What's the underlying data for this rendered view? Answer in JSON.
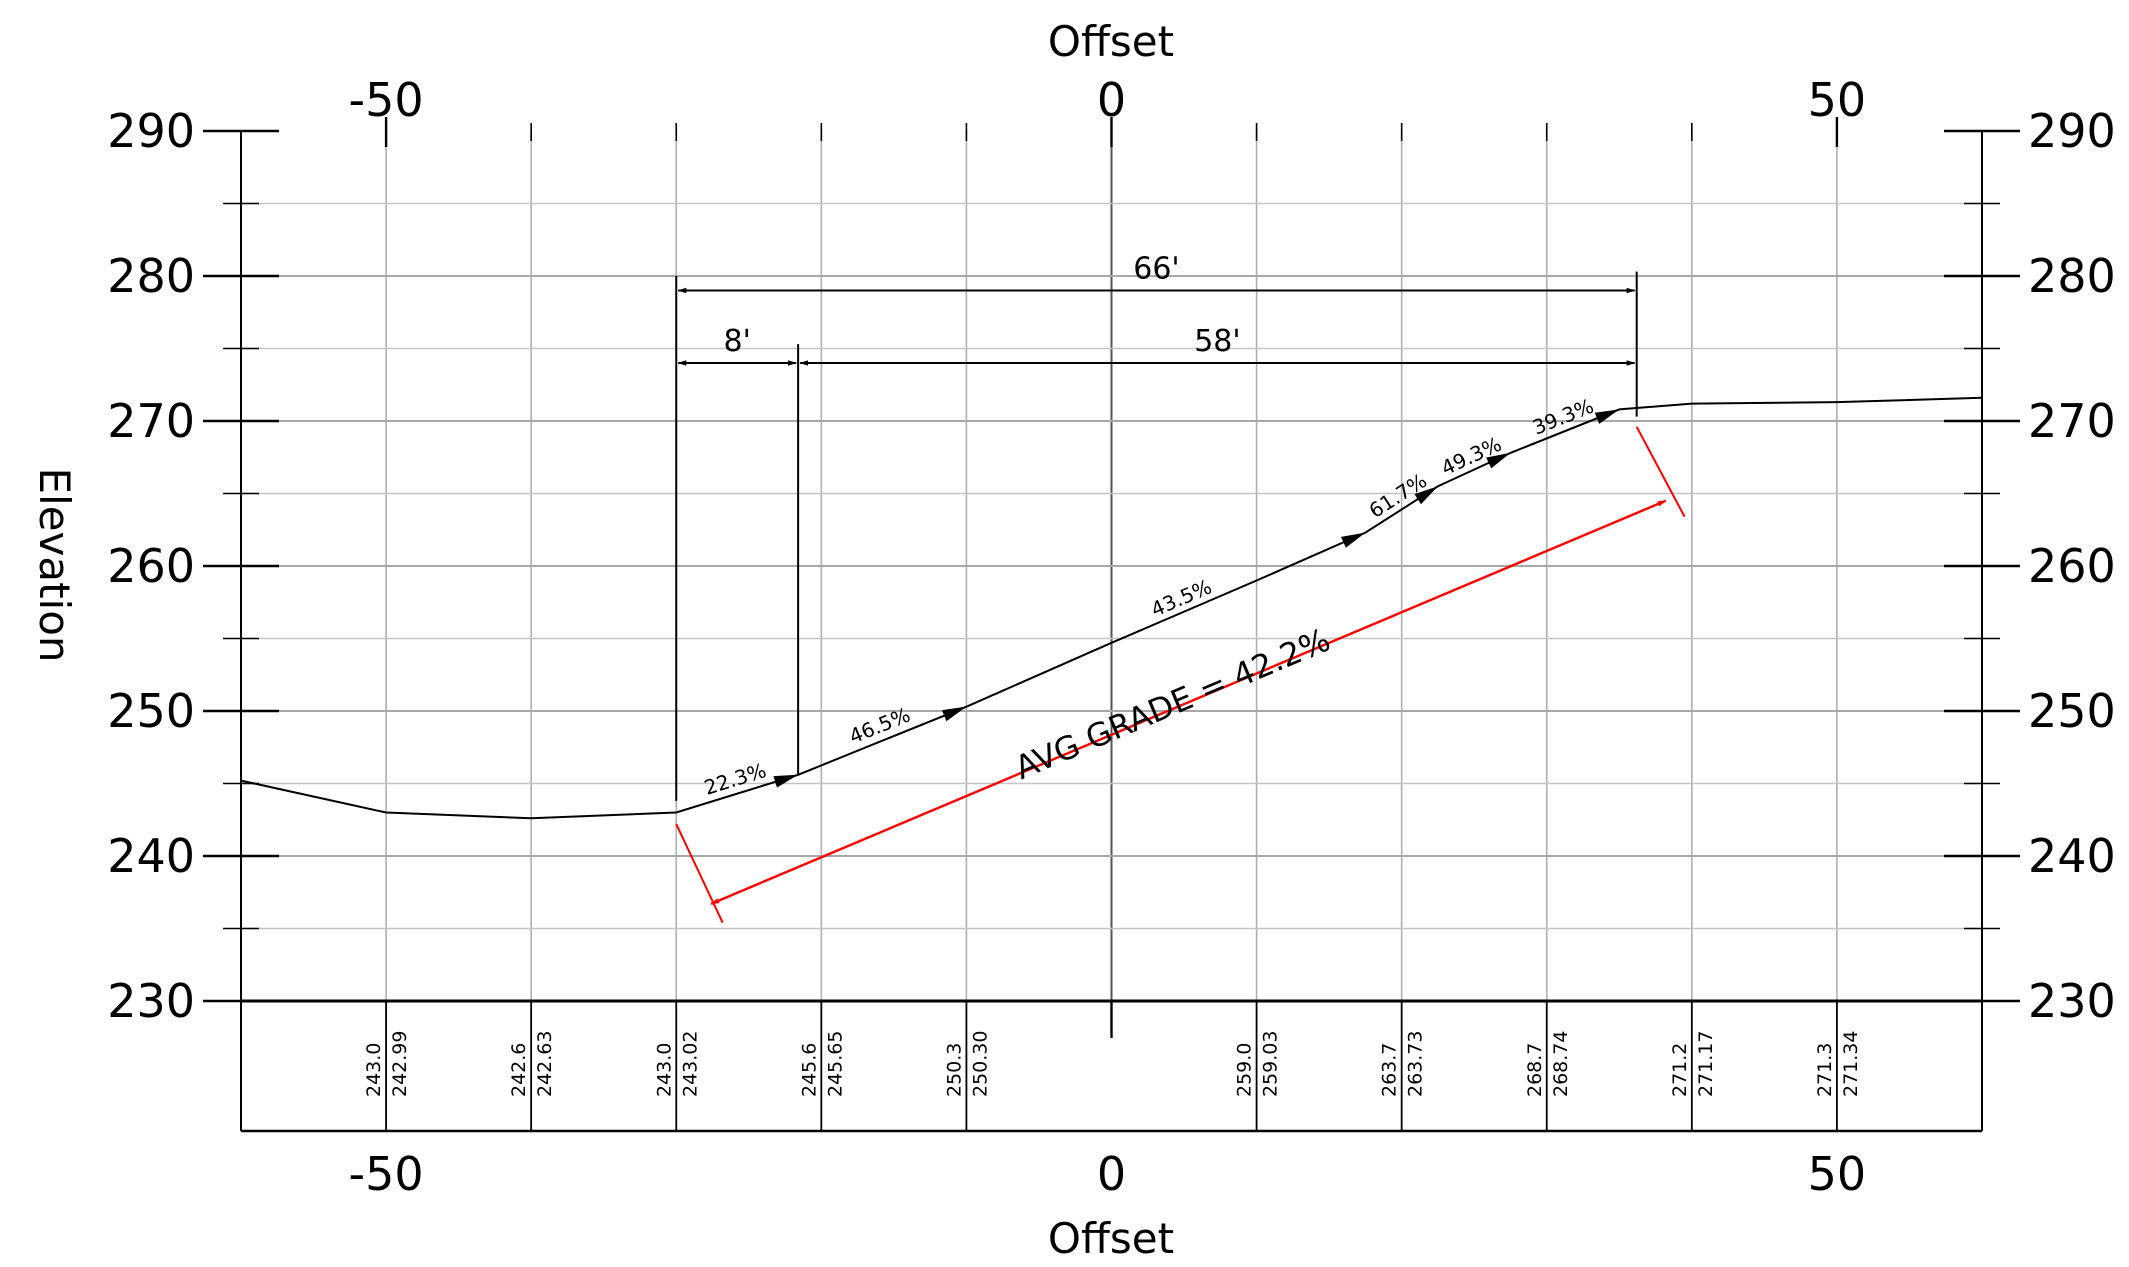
{
  "chart_data": {
    "type": "line",
    "title": "",
    "xlabel_top": "Offset",
    "xlabel_bottom": "Offset",
    "ylabel": "Elevation",
    "xlim": [
      -60,
      60
    ],
    "ylim": [
      230,
      290
    ],
    "x_ticks": [
      -50,
      0,
      50
    ],
    "x_tick_labels": [
      "-50",
      "0",
      "50"
    ],
    "y_ticks": [
      230,
      240,
      250,
      260,
      270,
      280,
      290
    ],
    "y_tick_labels": [
      "230",
      "240",
      "250",
      "260",
      "270",
      "280",
      "290"
    ],
    "grid": true,
    "series": [
      {
        "x": [
          -60,
          -50,
          -40,
          -30,
          -21.6,
          -10,
          0,
          10,
          17.5,
          22.5,
          27.5,
          35,
          40,
          50,
          60
        ],
        "y": [
          245.2,
          243.0,
          242.6,
          243.0,
          245.6,
          250.3,
          254.7,
          259.0,
          262.3,
          265.5,
          267.8,
          270.8,
          271.2,
          271.3,
          271.6
        ]
      }
    ],
    "station_columns": [
      {
        "x": -50,
        "left": "243.0",
        "right": "242.99"
      },
      {
        "x": -40,
        "left": "242.6",
        "right": "242.63"
      },
      {
        "x": -30,
        "left": "243.0",
        "right": "243.02"
      },
      {
        "x": -20,
        "left": "245.6",
        "right": "245.65"
      },
      {
        "x": -10,
        "left": "250.3",
        "right": "250.30"
      },
      {
        "x": 10,
        "left": "259.0",
        "right": "259.03"
      },
      {
        "x": 20,
        "left": "263.7",
        "right": "263.73"
      },
      {
        "x": 30,
        "left": "268.7",
        "right": "268.74"
      },
      {
        "x": 40,
        "left": "271.2",
        "right": "271.17"
      },
      {
        "x": 50,
        "left": "271.3",
        "right": "271.34"
      }
    ],
    "grade_labels": [
      {
        "text": "22.3%",
        "x": -25.8,
        "y": 244.3
      },
      {
        "text": "46.5%",
        "x": -15.8,
        "y": 248.0
      },
      {
        "text": "43.5%",
        "x": 5,
        "y": 256.8
      },
      {
        "text": "61.7%",
        "x": 20,
        "y": 263.9
      },
      {
        "text": "49.3%",
        "x": 25,
        "y": 266.6
      },
      {
        "text": "39.3%",
        "x": 31.3,
        "y": 269.3
      }
    ],
    "dimensions": [
      {
        "label": "66'",
        "x1": -30.0,
        "x2": 36.2,
        "y": 279
      },
      {
        "label": "8'",
        "x1": -30.0,
        "x2": -21.6,
        "y": 274
      },
      {
        "label": "58'",
        "x1": -21.6,
        "x2": 36.2,
        "y": 274
      }
    ],
    "avg_grade": {
      "text": "AVG GRADE = 42.2%",
      "x1": -27.6,
      "y1": 236.7,
      "x2": 38.2,
      "y2": 264.5,
      "color": "#ff0000"
    }
  }
}
